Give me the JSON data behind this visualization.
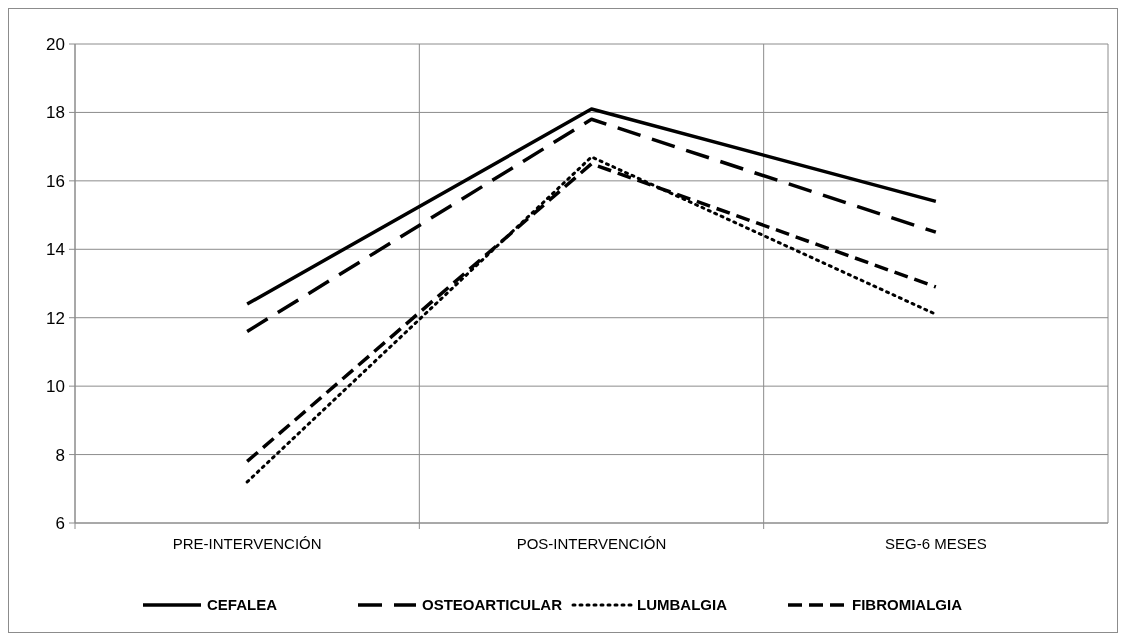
{
  "chart_data": {
    "type": "line",
    "categories": [
      "PRE-INTERVENCIÓN",
      "POS-INTERVENCIÓN",
      "SEG-6 MESES"
    ],
    "series": [
      {
        "name": "CEFALEA",
        "color": "#000000",
        "line_style": "solid",
        "values": [
          12.4,
          18.1,
          15.4
        ]
      },
      {
        "name": "OSTEOARTICULAR",
        "color": "#000000",
        "line_style": "longdash",
        "values": [
          11.6,
          17.8,
          14.5
        ]
      },
      {
        "name": "LUMBALGIA",
        "color": "#000000",
        "line_style": "dotted",
        "values": [
          7.2,
          16.7,
          12.1
        ]
      },
      {
        "name": "FIBROMIALGIA",
        "color": "#000000",
        "line_style": "dashed",
        "values": [
          7.8,
          16.5,
          12.9
        ]
      }
    ],
    "ylim": [
      6,
      20
    ],
    "yticks": [
      6,
      8,
      10,
      12,
      14,
      16,
      18,
      20
    ],
    "grid": true,
    "legend": "bottom"
  }
}
